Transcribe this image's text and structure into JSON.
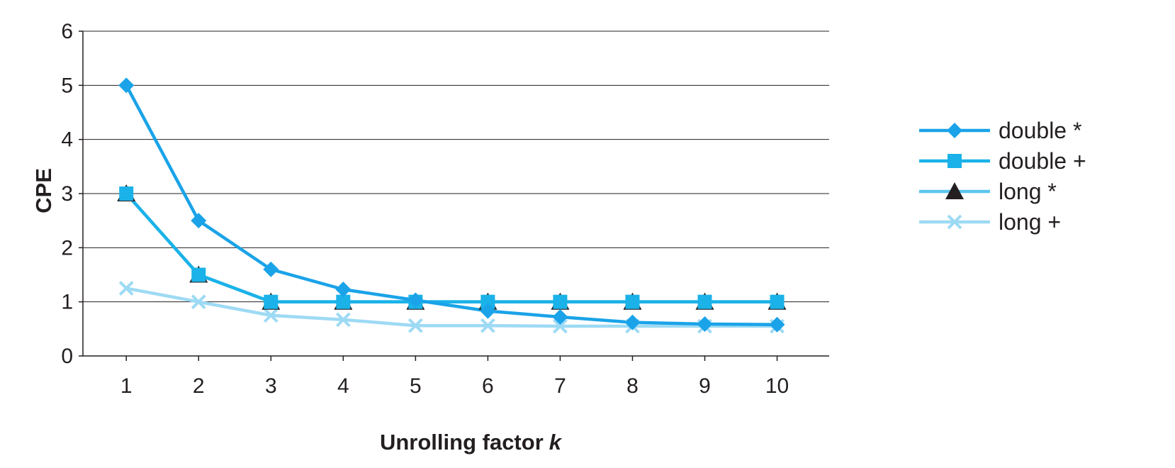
{
  "chart_data": {
    "type": "line",
    "x": [
      1,
      2,
      3,
      4,
      5,
      6,
      7,
      8,
      9,
      10
    ],
    "xlabel": "Unrolling factor",
    "xlabel_var": "k",
    "ylabel": "CPE",
    "ylim": [
      0,
      6
    ],
    "yticks": [
      0,
      1,
      2,
      3,
      4,
      5,
      6
    ],
    "grid": "horizontal",
    "legend_position": "right",
    "series": [
      {
        "name": "double *",
        "marker": "diamond",
        "color": "#1aa3e8",
        "values": [
          5.0,
          2.5,
          1.6,
          1.23,
          1.03,
          0.83,
          0.72,
          0.62,
          0.59,
          0.58
        ]
      },
      {
        "name": "double +",
        "marker": "square",
        "color": "#1ab2e8",
        "values": [
          3.0,
          1.5,
          1.0,
          1.0,
          1.0,
          1.0,
          1.0,
          1.0,
          1.0,
          1.0
        ]
      },
      {
        "name": "long *",
        "marker": "triangle",
        "color": "#5cc6ef",
        "values": [
          3.0,
          1.5,
          1.0,
          1.0,
          1.0,
          1.0,
          1.0,
          1.0,
          1.0,
          1.0
        ]
      },
      {
        "name": "long +",
        "marker": "x",
        "color": "#9ddaf4",
        "values": [
          1.25,
          1.0,
          0.75,
          0.67,
          0.56,
          0.56,
          0.55,
          0.55,
          0.55,
          0.55
        ]
      }
    ]
  }
}
